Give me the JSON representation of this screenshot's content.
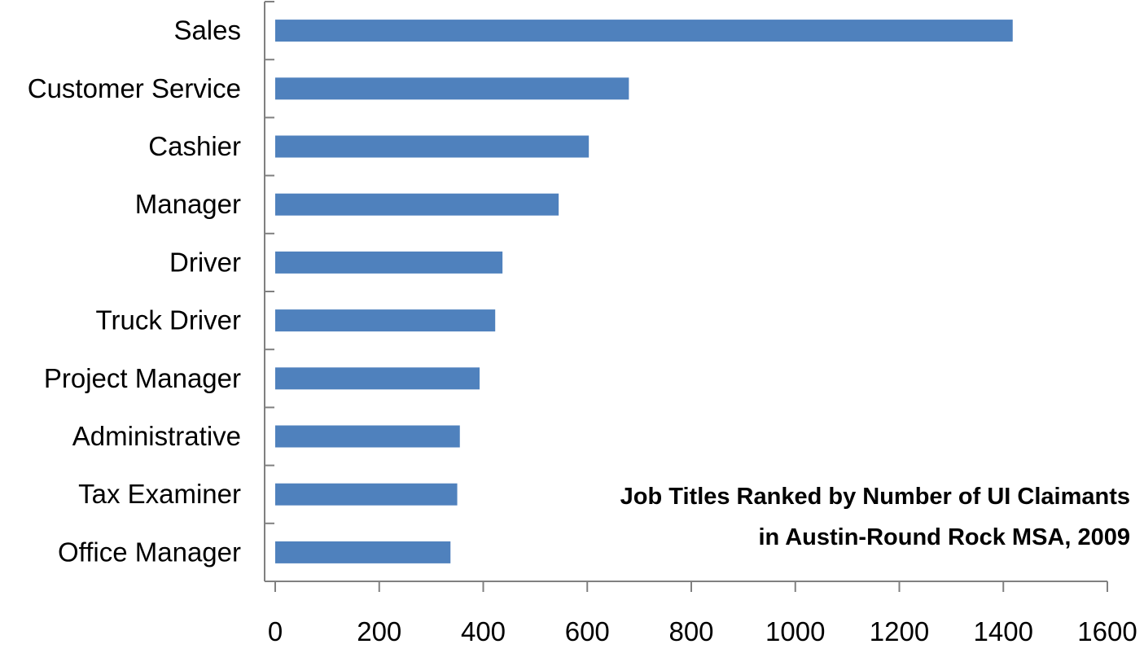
{
  "chart_data": {
    "type": "bar",
    "orientation": "horizontal",
    "title": [
      "Job Titles Ranked by Number of UI Claimants",
      "in Austin-Round Rock MSA, 2009"
    ],
    "xlabel": "",
    "ylabel": "",
    "categories": [
      "Sales",
      "Customer Service",
      "Cashier",
      "Manager",
      "Driver",
      "Truck Driver",
      "Project Manager",
      "Administrative",
      "Tax Examiner",
      "Office Manager"
    ],
    "values": [
      1418,
      680,
      603,
      545,
      437,
      423,
      393,
      355,
      350,
      337
    ],
    "xlim": [
      0,
      1600
    ],
    "xticks": [
      "0",
      "200",
      "400",
      "600",
      "800",
      "1000",
      "1200",
      "1400",
      "1600"
    ],
    "grid": false,
    "legend": "none",
    "bar_color": "#4f81bd",
    "axis_color": "#808080"
  }
}
